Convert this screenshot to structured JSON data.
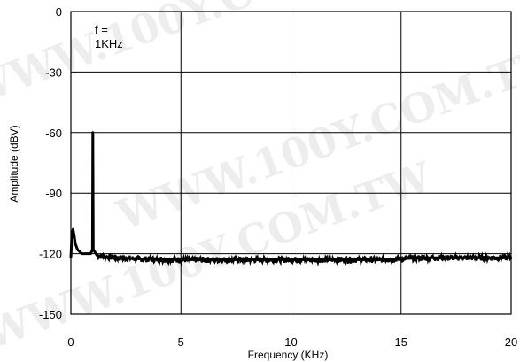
{
  "chart_data": {
    "type": "line",
    "title": "",
    "xlabel": "Frequency (KHz)",
    "ylabel": "Amplitude (dBV)",
    "xlim": [
      0,
      20
    ],
    "ylim": [
      -150,
      0
    ],
    "x_ticks": [
      "0",
      "5",
      "10",
      "15",
      "20"
    ],
    "y_ticks": [
      "0",
      "-30",
      "-60",
      "-90",
      "-120",
      "-150"
    ],
    "grid": true,
    "annotation": [
      "f =",
      "1KHz"
    ],
    "series": [
      {
        "values": [
          {
            "x": 0.0,
            "y": -122
          },
          {
            "x": 0.05,
            "y": -110
          },
          {
            "x": 0.1,
            "y": -108
          },
          {
            "x": 0.15,
            "y": -111
          },
          {
            "x": 0.2,
            "y": -115
          },
          {
            "x": 0.3,
            "y": -118
          },
          {
            "x": 0.4,
            "y": -119
          },
          {
            "x": 0.5,
            "y": -120
          },
          {
            "x": 0.7,
            "y": -120
          },
          {
            "x": 0.9,
            "y": -120
          },
          {
            "x": 0.98,
            "y": -118
          },
          {
            "x": 1.0,
            "y": -60
          },
          {
            "x": 1.02,
            "y": -118
          },
          {
            "x": 1.2,
            "y": -121
          },
          {
            "x": 2,
            "y": -122
          },
          {
            "x": 4,
            "y": -123
          },
          {
            "x": 6,
            "y": -123
          },
          {
            "x": 8,
            "y": -123
          },
          {
            "x": 10,
            "y": -123
          },
          {
            "x": 12,
            "y": -123
          },
          {
            "x": 14,
            "y": -123
          },
          {
            "x": 16,
            "y": -122
          },
          {
            "x": 18,
            "y": -122
          },
          {
            "x": 20,
            "y": -122
          }
        ]
      }
    ]
  },
  "watermark": [
    "WWW.100Y.COM.TW",
    "WWW.100Y.COM.TW",
    "WWW.100Y.COM.TW"
  ]
}
